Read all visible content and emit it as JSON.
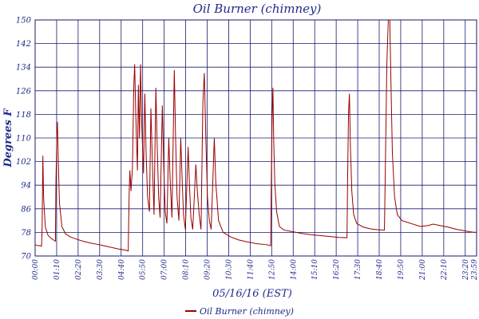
{
  "chart_data": {
    "type": "line",
    "title": "Oil Burner (chimney)",
    "xlabel": "05/16/16 (EST)",
    "ylabel": "Degrees F",
    "ylim": [
      70,
      150
    ],
    "xlim_hours": [
      0,
      23.95
    ],
    "y_ticks": [
      70,
      78,
      86,
      94,
      102,
      110,
      118,
      126,
      134,
      142,
      150
    ],
    "x_ticks": [
      {
        "label": "00:00",
        "hour": 0.0
      },
      {
        "label": "01:10",
        "hour": 1.1667
      },
      {
        "label": "02:20",
        "hour": 2.3333
      },
      {
        "label": "03:30",
        "hour": 3.5
      },
      {
        "label": "04:40",
        "hour": 4.6667
      },
      {
        "label": "05:50",
        "hour": 5.8333
      },
      {
        "label": "07:00",
        "hour": 7.0
      },
      {
        "label": "08:10",
        "hour": 8.1667
      },
      {
        "label": "09:20",
        "hour": 9.3333
      },
      {
        "label": "10:30",
        "hour": 10.5
      },
      {
        "label": "11:40",
        "hour": 11.6667
      },
      {
        "label": "12:50",
        "hour": 12.8333
      },
      {
        "label": "14:00",
        "hour": 14.0
      },
      {
        "label": "15:10",
        "hour": 15.1667
      },
      {
        "label": "16:20",
        "hour": 16.3333
      },
      {
        "label": "17:30",
        "hour": 17.5
      },
      {
        "label": "18:40",
        "hour": 18.6667
      },
      {
        "label": "19:50",
        "hour": 19.8333
      },
      {
        "label": "21:00",
        "hour": 21.0
      },
      {
        "label": "22:10",
        "hour": 22.1667
      },
      {
        "label": "23:20",
        "hour": 23.3333
      },
      {
        "label": "23:59",
        "hour": 23.95
      }
    ],
    "grid": true,
    "legend_position": "bottom-center",
    "series": [
      {
        "name": "Oil Burner (chimney)",
        "color": "#990000",
        "points": [
          [
            0.0,
            73.8
          ],
          [
            0.15,
            73.5
          ],
          [
            0.35,
            73.4
          ],
          [
            0.38,
            80
          ],
          [
            0.42,
            104
          ],
          [
            0.46,
            90
          ],
          [
            0.55,
            80
          ],
          [
            0.7,
            77
          ],
          [
            0.9,
            75.8
          ],
          [
            1.05,
            75.2
          ],
          [
            1.1,
            75.0
          ],
          [
            1.13,
            95
          ],
          [
            1.18,
            112
          ],
          [
            1.21,
            115.5
          ],
          [
            1.25,
            104
          ],
          [
            1.32,
            88
          ],
          [
            1.45,
            80
          ],
          [
            1.65,
            77.5
          ],
          [
            1.9,
            76.5
          ],
          [
            2.2,
            75.8
          ],
          [
            2.6,
            75.0
          ],
          [
            3.0,
            74.4
          ],
          [
            3.5,
            73.8
          ],
          [
            4.0,
            73.1
          ],
          [
            4.5,
            72.4
          ],
          [
            4.9,
            72.0
          ],
          [
            5.05,
            71.7
          ],
          [
            5.1,
            91
          ],
          [
            5.14,
            99
          ],
          [
            5.2,
            92
          ],
          [
            5.28,
            100
          ],
          [
            5.35,
            127
          ],
          [
            5.4,
            135
          ],
          [
            5.46,
            118
          ],
          [
            5.55,
            99
          ],
          [
            5.6,
            128
          ],
          [
            5.66,
            110
          ],
          [
            5.72,
            135
          ],
          [
            5.78,
            115
          ],
          [
            5.88,
            98
          ],
          [
            5.95,
            125
          ],
          [
            6.02,
            105
          ],
          [
            6.1,
            90
          ],
          [
            6.2,
            85
          ],
          [
            6.28,
            120
          ],
          [
            6.36,
            102
          ],
          [
            6.45,
            84
          ],
          [
            6.55,
            127
          ],
          [
            6.62,
            108
          ],
          [
            6.7,
            90
          ],
          [
            6.78,
            83
          ],
          [
            6.9,
            121
          ],
          [
            6.98,
            100
          ],
          [
            7.06,
            85
          ],
          [
            7.15,
            81
          ],
          [
            7.25,
            110
          ],
          [
            7.33,
            95
          ],
          [
            7.42,
            83
          ],
          [
            7.55,
            133
          ],
          [
            7.62,
            110
          ],
          [
            7.7,
            90
          ],
          [
            7.8,
            82
          ],
          [
            7.9,
            110
          ],
          [
            7.98,
            95
          ],
          [
            8.05,
            84
          ],
          [
            8.15,
            79
          ],
          [
            8.3,
            107
          ],
          [
            8.38,
            93
          ],
          [
            8.45,
            83
          ],
          [
            8.55,
            79
          ],
          [
            8.72,
            101
          ],
          [
            8.8,
            92
          ],
          [
            8.9,
            84
          ],
          [
            9.0,
            79
          ],
          [
            9.1,
            122
          ],
          [
            9.18,
            132
          ],
          [
            9.26,
            110
          ],
          [
            9.35,
            90
          ],
          [
            9.45,
            82
          ],
          [
            9.55,
            79
          ],
          [
            9.72,
            110
          ],
          [
            9.8,
            95
          ],
          [
            9.95,
            82
          ],
          [
            10.2,
            78
          ],
          [
            10.6,
            76.5
          ],
          [
            11.0,
            75.5
          ],
          [
            11.5,
            74.8
          ],
          [
            12.0,
            74.2
          ],
          [
            12.6,
            73.8
          ],
          [
            12.78,
            73.5
          ],
          [
            12.82,
            100
          ],
          [
            12.86,
            118
          ],
          [
            12.9,
            127
          ],
          [
            12.94,
            110
          ],
          [
            13.0,
            95
          ],
          [
            13.1,
            85
          ],
          [
            13.25,
            80
          ],
          [
            13.5,
            78.8
          ],
          [
            14.0,
            78.2
          ],
          [
            14.5,
            77.6
          ],
          [
            15.0,
            77.2
          ],
          [
            15.5,
            76.9
          ],
          [
            16.0,
            76.6
          ],
          [
            16.5,
            76.3
          ],
          [
            16.92,
            76.2
          ],
          [
            16.95,
            95
          ],
          [
            17.0,
            118
          ],
          [
            17.05,
            125
          ],
          [
            17.1,
            108
          ],
          [
            17.18,
            92
          ],
          [
            17.28,
            84
          ],
          [
            17.45,
            81
          ],
          [
            17.8,
            79.8
          ],
          [
            18.2,
            79.2
          ],
          [
            18.6,
            78.9
          ],
          [
            18.95,
            78.8
          ],
          [
            19.0,
            100
          ],
          [
            19.08,
            135
          ],
          [
            19.16,
            150
          ],
          [
            19.24,
            150
          ],
          [
            19.3,
            130
          ],
          [
            19.38,
            105
          ],
          [
            19.5,
            90
          ],
          [
            19.65,
            84
          ],
          [
            19.9,
            82
          ],
          [
            20.4,
            81
          ],
          [
            20.9,
            80
          ],
          [
            21.3,
            80.3
          ],
          [
            21.6,
            80.8
          ],
          [
            21.9,
            80.4
          ],
          [
            22.4,
            79.8
          ],
          [
            22.9,
            79
          ],
          [
            23.4,
            78.4
          ],
          [
            23.7,
            78.1
          ],
          [
            23.95,
            78
          ]
        ]
      }
    ]
  }
}
